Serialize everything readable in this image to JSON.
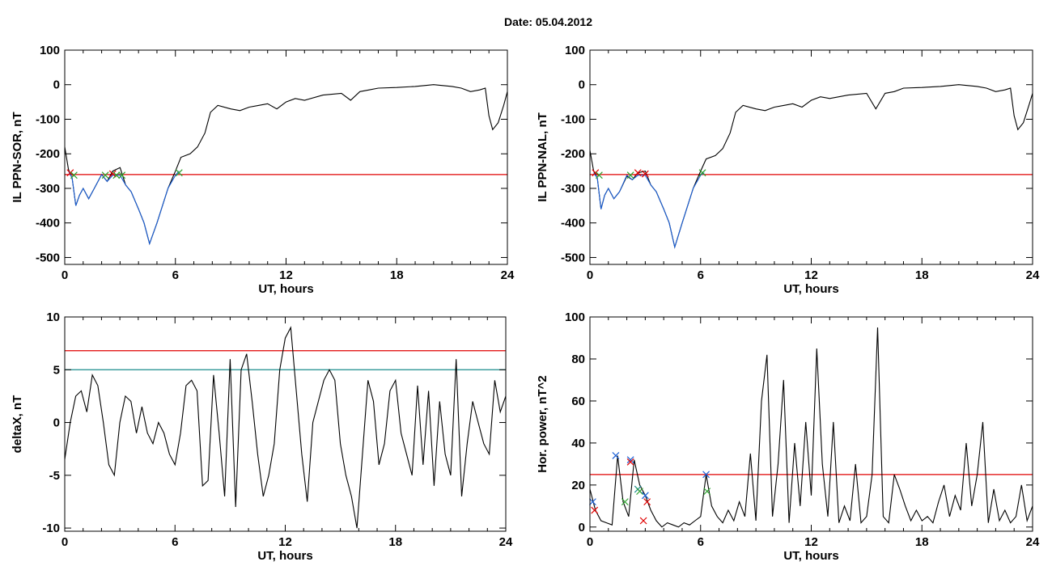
{
  "title": "Date:  05.04.2012",
  "chart_data": [
    {
      "type": "line",
      "id": "p1",
      "xlabel": "UT, hours",
      "ylabel": "IL PPN-SOR, nT",
      "xlim": [
        0,
        24
      ],
      "ylim": [
        -520,
        100
      ],
      "xticks": [
        0,
        6,
        12,
        18,
        24
      ],
      "yticks": [
        100,
        0,
        -100,
        -200,
        -300,
        -400,
        -500
      ],
      "xtick_labels": [
        "0",
        "6",
        "12",
        "18",
        "24"
      ],
      "ytick_labels": [
        "100",
        "0",
        "-100",
        "-200",
        "-300",
        "-400",
        "-500"
      ],
      "hlines": [
        {
          "y": -260,
          "color": "#e00000"
        }
      ],
      "series": [
        {
          "color": "#000000",
          "x": [
            0,
            0.2,
            0.4,
            0.6,
            0.8,
            1.0,
            1.3,
            1.6,
            2.0,
            2.3,
            2.6,
            3.0,
            3.3,
            3.6,
            4.0,
            4.3,
            4.6,
            5.0,
            5.3,
            5.6,
            6.0,
            6.3,
            6.8,
            7.2,
            7.6,
            7.9,
            8.3,
            9.0,
            9.5,
            10.0,
            10.5,
            11.0,
            11.5,
            12.0,
            12.5,
            13.0,
            14.0,
            15.0,
            15.5,
            16.0,
            16.5,
            17.0,
            18.0,
            19.0,
            20.0,
            21.0,
            21.5,
            22.0,
            22.5,
            22.8,
            23.0,
            23.2,
            23.5,
            23.8,
            24.0
          ],
          "y": [
            -180,
            -245,
            -270,
            -350,
            -320,
            -300,
            -330,
            -300,
            -260,
            -280,
            -250,
            -240,
            -290,
            -310,
            -360,
            -400,
            -460,
            -400,
            -350,
            -300,
            -250,
            -210,
            -200,
            -180,
            -140,
            -80,
            -60,
            -70,
            -75,
            -65,
            -60,
            -55,
            -70,
            -50,
            -40,
            -45,
            -30,
            -25,
            -45,
            -20,
            -15,
            -10,
            -8,
            -5,
            0,
            -5,
            -10,
            -20,
            -15,
            -10,
            -90,
            -130,
            -110,
            -60,
            -20
          ]
        },
        {
          "color": "#1a5fd6",
          "x": [
            0.2,
            0.4,
            0.6,
            0.8,
            1.0,
            1.3,
            1.6,
            2.0,
            2.3,
            2.6,
            3.0,
            3.3,
            3.6,
            4.0,
            4.3,
            4.6,
            5.0,
            5.3,
            5.6,
            6.0,
            6.2
          ],
          "y": [
            -250,
            -270,
            -350,
            -320,
            -300,
            -330,
            -300,
            -260,
            -280,
            -262,
            -262,
            -290,
            -310,
            -360,
            -400,
            -460,
            -400,
            -350,
            -300,
            -262,
            -250
          ]
        }
      ],
      "markers": [
        {
          "x": 0.3,
          "y": -255,
          "color": "#e00000"
        },
        {
          "x": 0.5,
          "y": -262,
          "color": "#2ca02c"
        },
        {
          "x": 2.2,
          "y": -262,
          "color": "#2ca02c"
        },
        {
          "x": 2.6,
          "y": -258,
          "color": "#e00000"
        },
        {
          "x": 2.8,
          "y": -262,
          "color": "#2ca02c"
        },
        {
          "x": 3.1,
          "y": -262,
          "color": "#2ca02c"
        },
        {
          "x": 6.2,
          "y": -255,
          "color": "#2ca02c"
        }
      ]
    },
    {
      "type": "line",
      "id": "p2",
      "xlabel": "UT, hours",
      "ylabel": "IL PPN-NAL, nT",
      "xlim": [
        0,
        24
      ],
      "ylim": [
        -520,
        100
      ],
      "xticks": [
        0,
        6,
        12,
        18,
        24
      ],
      "yticks": [
        100,
        0,
        -100,
        -200,
        -300,
        -400,
        -500
      ],
      "xtick_labels": [
        "0",
        "6",
        "12",
        "18",
        "24"
      ],
      "ytick_labels": [
        "100",
        "0",
        "-100",
        "-200",
        "-300",
        "-400",
        "-500"
      ],
      "hlines": [
        {
          "y": -260,
          "color": "#e00000"
        }
      ],
      "series": [
        {
          "color": "#000000",
          "x": [
            0,
            0.2,
            0.4,
            0.6,
            0.8,
            1.0,
            1.3,
            1.6,
            2.0,
            2.3,
            2.6,
            3.0,
            3.3,
            3.6,
            4.0,
            4.3,
            4.6,
            5.0,
            5.3,
            5.6,
            6.0,
            6.3,
            6.8,
            7.2,
            7.6,
            7.9,
            8.3,
            9.0,
            9.5,
            10.0,
            10.5,
            11.0,
            11.5,
            12.0,
            12.5,
            13.0,
            14.0,
            15.0,
            15.5,
            16.0,
            16.5,
            17.0,
            18.0,
            19.0,
            20.0,
            21.0,
            21.5,
            22.0,
            22.5,
            22.8,
            23.0,
            23.2,
            23.5,
            23.8,
            24.0
          ],
          "y": [
            -190,
            -250,
            -270,
            -360,
            -320,
            -300,
            -330,
            -310,
            -265,
            -275,
            -255,
            -250,
            -290,
            -310,
            -360,
            -400,
            -470,
            -400,
            -350,
            -300,
            -250,
            -215,
            -205,
            -185,
            -140,
            -80,
            -60,
            -70,
            -75,
            -65,
            -60,
            -55,
            -65,
            -45,
            -35,
            -40,
            -30,
            -25,
            -70,
            -25,
            -20,
            -10,
            -8,
            -5,
            0,
            -5,
            -10,
            -20,
            -15,
            -10,
            -90,
            -130,
            -110,
            -60,
            -25
          ]
        },
        {
          "color": "#1a5fd6",
          "x": [
            0.2,
            0.4,
            0.6,
            0.8,
            1.0,
            1.3,
            1.6,
            2.0,
            2.3,
            2.6,
            3.0,
            3.3,
            3.6,
            4.0,
            4.3,
            4.6,
            5.0,
            5.3,
            5.6,
            6.0,
            6.2
          ],
          "y": [
            -255,
            -270,
            -360,
            -320,
            -300,
            -330,
            -310,
            -262,
            -275,
            -262,
            -262,
            -290,
            -310,
            -360,
            -400,
            -470,
            -400,
            -350,
            -300,
            -262,
            -255
          ]
        }
      ],
      "markers": [
        {
          "x": 0.3,
          "y": -255,
          "color": "#e00000"
        },
        {
          "x": 0.5,
          "y": -262,
          "color": "#2ca02c"
        },
        {
          "x": 2.2,
          "y": -262,
          "color": "#2ca02c"
        },
        {
          "x": 2.6,
          "y": -255,
          "color": "#e00000"
        },
        {
          "x": 3.0,
          "y": -258,
          "color": "#e00000"
        },
        {
          "x": 6.1,
          "y": -255,
          "color": "#2ca02c"
        }
      ]
    },
    {
      "type": "line",
      "id": "p3",
      "xlabel": "UT, hours",
      "ylabel": "deltaX, nT",
      "xlim": [
        0,
        24
      ],
      "ylim": [
        -10.3,
        10
      ],
      "xticks": [
        0,
        6,
        12,
        18,
        24
      ],
      "yticks": [
        10,
        5,
        0,
        -5,
        -10
      ],
      "xtick_labels": [
        "0",
        "6",
        "12",
        "18",
        "24"
      ],
      "ytick_labels": [
        "10",
        "5",
        "0",
        "-5",
        "-10"
      ],
      "hlines": [
        {
          "y": 6.8,
          "color": "#e00000"
        },
        {
          "y": 5.0,
          "color": "#1a8c8c"
        }
      ],
      "series": [
        {
          "color": "#000000",
          "x": [
            0,
            0.3,
            0.6,
            0.9,
            1.2,
            1.5,
            1.8,
            2.1,
            2.4,
            2.7,
            3.0,
            3.3,
            3.6,
            3.9,
            4.2,
            4.5,
            4.8,
            5.1,
            5.4,
            5.7,
            6.0,
            6.3,
            6.6,
            6.9,
            7.2,
            7.5,
            7.8,
            8.1,
            8.4,
            8.7,
            9.0,
            9.3,
            9.6,
            9.9,
            10.2,
            10.5,
            10.8,
            11.1,
            11.4,
            11.7,
            12.0,
            12.3,
            12.6,
            12.9,
            13.2,
            13.5,
            13.8,
            14.1,
            14.4,
            14.7,
            15.0,
            15.3,
            15.6,
            15.9,
            16.2,
            16.5,
            16.8,
            17.1,
            17.4,
            17.7,
            18.0,
            18.3,
            18.6,
            18.9,
            19.2,
            19.5,
            19.8,
            20.1,
            20.4,
            20.7,
            21.0,
            21.3,
            21.6,
            21.9,
            22.2,
            22.5,
            22.8,
            23.1,
            23.4,
            23.7,
            24.0
          ],
          "y": [
            -3.5,
            0,
            2.5,
            3,
            1,
            4.5,
            3.5,
            0,
            -4,
            -5,
            0,
            2.5,
            2,
            -1,
            1.5,
            -1,
            -2,
            0,
            -1,
            -3,
            -4,
            -1,
            3.5,
            4,
            3,
            -6,
            -5.5,
            4.5,
            -1,
            -7,
            6,
            -8,
            5,
            6.5,
            2,
            -3,
            -7,
            -5,
            -2,
            5,
            8,
            9,
            3,
            -3,
            -7.5,
            0,
            2,
            4,
            5,
            4,
            -2,
            -5,
            -7,
            -10,
            -3,
            4,
            2,
            -4,
            -2,
            3,
            4,
            -1,
            -3,
            -5,
            3.5,
            -4,
            3,
            -6,
            2,
            -3,
            -5,
            6,
            -7,
            -2,
            2,
            0,
            -2,
            -3,
            4,
            1,
            2.5
          ]
        }
      ],
      "markers": []
    },
    {
      "type": "line",
      "id": "p4",
      "xlabel": "UT, hours",
      "ylabel": "Hor. power, nT^2",
      "xlim": [
        0,
        24
      ],
      "ylim": [
        -2,
        100
      ],
      "xticks": [
        0,
        6,
        12,
        18,
        24
      ],
      "yticks": [
        100,
        80,
        60,
        40,
        20,
        0
      ],
      "xtick_labels": [
        "0",
        "6",
        "12",
        "18",
        "24"
      ],
      "ytick_labels": [
        "100",
        "80",
        "60",
        "40",
        "20",
        "0"
      ],
      "hlines": [
        {
          "y": 25,
          "color": "#e00000"
        }
      ],
      "series": [
        {
          "color": "#000000",
          "x": [
            0,
            0.3,
            0.6,
            0.9,
            1.2,
            1.5,
            1.8,
            2.1,
            2.4,
            2.7,
            3.0,
            3.3,
            3.6,
            3.9,
            4.2,
            4.5,
            4.8,
            5.1,
            5.4,
            5.7,
            6.0,
            6.3,
            6.6,
            6.9,
            7.2,
            7.5,
            7.8,
            8.1,
            8.4,
            8.7,
            9.0,
            9.3,
            9.6,
            9.9,
            10.2,
            10.5,
            10.8,
            11.1,
            11.4,
            11.7,
            12.0,
            12.3,
            12.6,
            12.9,
            13.2,
            13.5,
            13.8,
            14.1,
            14.4,
            14.7,
            15.0,
            15.3,
            15.6,
            15.9,
            16.2,
            16.5,
            16.8,
            17.1,
            17.4,
            17.7,
            18.0,
            18.3,
            18.6,
            18.9,
            19.2,
            19.5,
            19.8,
            20.1,
            20.4,
            20.7,
            21.0,
            21.3,
            21.6,
            21.9,
            22.2,
            22.5,
            22.8,
            23.1,
            23.4,
            23.7,
            24.0
          ],
          "y": [
            18,
            8,
            3,
            2,
            1,
            34,
            12,
            5,
            32,
            20,
            15,
            8,
            3,
            0,
            2,
            1,
            0,
            2,
            1,
            3,
            5,
            25,
            10,
            5,
            2,
            8,
            3,
            12,
            5,
            35,
            3,
            60,
            82,
            5,
            30,
            70,
            2,
            40,
            10,
            50,
            15,
            85,
            30,
            5,
            50,
            2,
            10,
            3,
            30,
            2,
            5,
            25,
            95,
            5,
            2,
            25,
            18,
            10,
            3,
            8,
            3,
            5,
            2,
            12,
            20,
            5,
            15,
            8,
            40,
            10,
            25,
            50,
            2,
            18,
            3,
            8,
            2,
            5,
            20,
            3,
            10
          ]
        }
      ],
      "markers": [
        {
          "x": 0.15,
          "y": 12,
          "color": "#1a5fd6"
        },
        {
          "x": 0.25,
          "y": 8,
          "color": "#e00000"
        },
        {
          "x": 1.4,
          "y": 34,
          "color": "#1a5fd6"
        },
        {
          "x": 2.2,
          "y": 32,
          "color": "#1a5fd6"
        },
        {
          "x": 2.2,
          "y": 31,
          "color": "#e00000"
        },
        {
          "x": 2.6,
          "y": 18,
          "color": "#1a8c8c"
        },
        {
          "x": 2.7,
          "y": 17,
          "color": "#2ca02c"
        },
        {
          "x": 3.0,
          "y": 15,
          "color": "#1a5fd6"
        },
        {
          "x": 3.1,
          "y": 12,
          "color": "#e00000"
        },
        {
          "x": 2.9,
          "y": 3,
          "color": "#e00000"
        },
        {
          "x": 1.9,
          "y": 12,
          "color": "#2ca02c"
        },
        {
          "x": 6.3,
          "y": 25,
          "color": "#1a5fd6"
        },
        {
          "x": 6.35,
          "y": 17,
          "color": "#2ca02c"
        }
      ]
    }
  ]
}
